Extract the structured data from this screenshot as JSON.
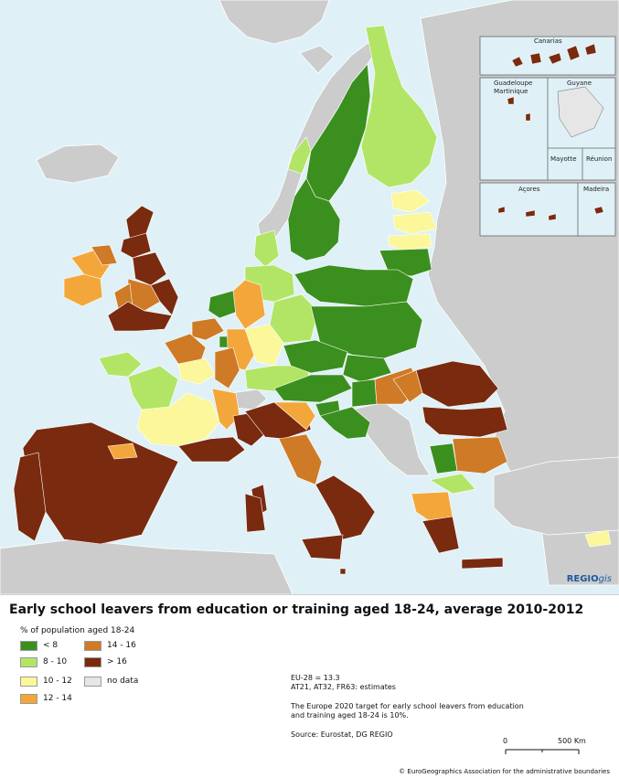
{
  "map": {
    "title": "Early school leavers from education or training aged 18-24, average 2010-2012",
    "legend_title": "% of population aged 18-24",
    "legend": [
      {
        "label": "< 8",
        "color": "#3b8f1f"
      },
      {
        "label": "8 - 10",
        "color": "#b2e566"
      },
      {
        "label": "10 - 12",
        "color": "#fbf79a"
      },
      {
        "label": "12 - 14",
        "color": "#f3a73b"
      },
      {
        "label": "14 - 16",
        "color": "#cf7a26"
      },
      {
        "label": "> 16",
        "color": "#7a2a0f"
      },
      {
        "label": "no data",
        "color": "#e6e6e6"
      }
    ],
    "notes": [
      "EU-28 = 13.3",
      "AT21, AT32, FR63: estimates",
      "The Europe 2020 target for early school leavers from education",
      "and training aged 18-24 is 10%.",
      "Source: Eurostat, DG REGIO"
    ],
    "insets": {
      "canarias": "Canarias",
      "guadeloupe": "Guadeloupe",
      "martinique": "Martinique",
      "guyane": "Guyane",
      "mayotte": "Mayotte",
      "reunion": "Réunion",
      "acores": "Açores",
      "madeira": "Madeira"
    },
    "scale": {
      "start": "0",
      "end": "500 Km"
    },
    "logo": {
      "bold": "REGIO",
      "italic": "gis"
    },
    "copyright": "© EuroGeographics Association for the administrative boundaries",
    "colors": {
      "sea": "#dff1f7",
      "non_eu_land": "#cccccc",
      "border": "#ffffff"
    }
  }
}
